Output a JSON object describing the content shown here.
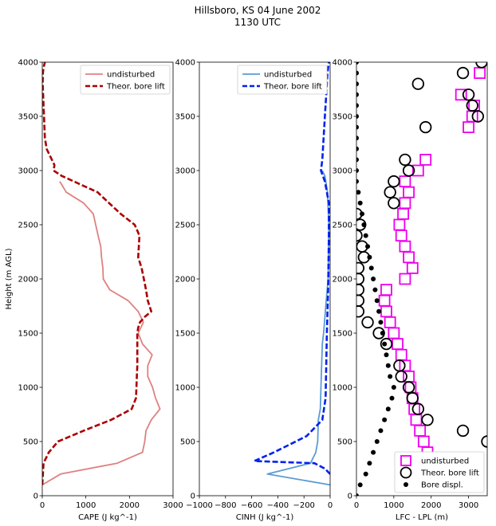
{
  "figure": {
    "title_line1": "Hillsboro, KS 04 June 2002",
    "title_line2": "1130 UTC"
  },
  "chart_data": [
    {
      "type": "line",
      "xlabel": "CAPE (J kg^-1)",
      "ylabel": "Height (m AGL)",
      "xlim": [
        0,
        3000
      ],
      "ylim": [
        0,
        4000
      ],
      "xticks": [
        "0",
        "1000",
        "2000",
        "3000"
      ],
      "yticks": [
        "0",
        "500",
        "1000",
        "1500",
        "2000",
        "2500",
        "3000",
        "3500",
        "4000"
      ],
      "legend_position": "top-right",
      "series": [
        {
          "name": "undisturbed",
          "color": "#e08080",
          "style": "solid",
          "x": [
            0,
            420,
            1720,
            2300,
            2350,
            2380,
            2500,
            2700,
            2600,
            2530,
            2420,
            2420,
            2520,
            2300,
            2200,
            2320,
            2200,
            1970,
            1550,
            1400,
            1390,
            1360,
            1340,
            1280,
            1170,
            950,
            550,
            400
          ],
          "y": [
            100,
            200,
            300,
            400,
            500,
            600,
            700,
            800,
            900,
            1000,
            1100,
            1200,
            1300,
            1400,
            1500,
            1600,
            1700,
            1800,
            1900,
            2000,
            2100,
            2200,
            2300,
            2400,
            2600,
            2700,
            2800,
            2900
          ]
        },
        {
          "name": "Theor. bore lift",
          "color": "#aa0000",
          "style": "dashed",
          "x": [
            0,
            30,
            150,
            360,
            950,
            1580,
            2050,
            2150,
            2160,
            2170,
            2180,
            2180,
            2180,
            2180,
            2200,
            2240,
            2350,
            2500,
            2420,
            2380,
            2330,
            2280,
            2200,
            2230,
            2120,
            1800,
            1400,
            1270,
            450,
            260,
            280,
            100,
            60,
            40,
            30,
            20,
            10,
            15,
            30,
            60
          ],
          "y": [
            100,
            300,
            400,
            500,
            600,
            700,
            800,
            900,
            1000,
            1100,
            1200,
            1300,
            1400,
            1500,
            1550,
            1600,
            1650,
            1700,
            1800,
            1900,
            2000,
            2100,
            2200,
            2400,
            2500,
            2600,
            2750,
            2800,
            2950,
            3000,
            3050,
            3200,
            3300,
            3500,
            3600,
            3700,
            3800,
            3900,
            3950,
            4000
          ]
        }
      ]
    },
    {
      "type": "line",
      "xlabel": "CINH (J kg^-1)",
      "ylabel": "",
      "xlim": [
        -1000,
        0
      ],
      "ylim": [
        0,
        4000
      ],
      "xticks": [
        "−1000",
        "−800",
        "−600",
        "−400",
        "−200",
        "0"
      ],
      "yticks": [
        "0",
        "500",
        "1000",
        "1500",
        "2000",
        "2500",
        "3000",
        "3500",
        "4000"
      ],
      "legend_position": "top-right",
      "series": [
        {
          "name": "undisturbed",
          "color": "#5b9bd5",
          "style": "solid",
          "x": [
            0,
            -480,
            -150,
            -110,
            -95,
            -90,
            -75,
            -70,
            -65,
            -60,
            -50,
            -30,
            -15,
            -10,
            -20,
            -40,
            -60
          ],
          "y": [
            100,
            200,
            300,
            400,
            500,
            700,
            800,
            1000,
            1200,
            1400,
            1500,
            1800,
            2000,
            2500,
            2800,
            2950,
            3000
          ]
        },
        {
          "name": "Theor. bore lift",
          "color": "#0022ee",
          "style": "dashed",
          "x": [
            0,
            -40,
            -120,
            -580,
            -430,
            -180,
            -60,
            -35,
            -30,
            -25,
            -15,
            -10,
            -10,
            -40,
            -70,
            -60,
            -50,
            -40,
            -30,
            -20,
            -10
          ],
          "y": [
            200,
            250,
            300,
            320,
            400,
            550,
            700,
            900,
            1200,
            1500,
            1900,
            2400,
            2700,
            2900,
            3000,
            3100,
            3300,
            3500,
            3700,
            3900,
            4000
          ]
        }
      ]
    },
    {
      "type": "scatter",
      "xlabel": "LFC - LPL (m)",
      "ylabel": "",
      "xlim": [
        0,
        3500
      ],
      "ylim": [
        0,
        4000
      ],
      "xticks": [
        "0",
        "1000",
        "2000",
        "3000"
      ],
      "yticks": [
        "0",
        "500",
        "1000",
        "1500",
        "2000",
        "2500",
        "3000",
        "3500",
        "4000"
      ],
      "legend_position": "bottom-right",
      "series": [
        {
          "name": "undisturbed",
          "color": "#ee00ee",
          "marker": "square",
          "x": [
            2000,
            1900,
            1800,
            1700,
            1600,
            1550,
            1500,
            1450,
            1400,
            1300,
            1200,
            1100,
            1000,
            900,
            800,
            750,
            800,
            1300,
            1500,
            1400,
            1300,
            1200,
            1150,
            1250,
            1300,
            1400,
            1300,
            1650,
            1850,
            3000,
            3100,
            3150,
            2800,
            3300
          ],
          "y": [
            300,
            400,
            500,
            600,
            700,
            800,
            900,
            1000,
            1100,
            1200,
            1300,
            1400,
            1500,
            1600,
            1700,
            1800,
            1900,
            2000,
            2100,
            2200,
            2300,
            2400,
            2500,
            2600,
            2700,
            2800,
            2900,
            3000,
            3100,
            3400,
            3500,
            3600,
            3700,
            3900
          ]
        },
        {
          "name": "Theor. bore lift",
          "color": "#000000",
          "marker": "circle",
          "x": [
            3500,
            2850,
            1900,
            1650,
            1500,
            1400,
            1200,
            1150,
            800,
            600,
            300,
            50,
            50,
            50,
            50,
            50,
            200,
            150,
            0,
            100,
            0,
            1000,
            900,
            1000,
            1400,
            1300,
            1850,
            3250,
            3100,
            3000,
            1650,
            2850,
            3350
          ],
          "y": [
            500,
            600,
            700,
            800,
            900,
            1000,
            1100,
            1200,
            1400,
            1500,
            1600,
            1700,
            1800,
            1900,
            2000,
            2100,
            2200,
            2300,
            2400,
            2500,
            2600,
            2700,
            2800,
            2900,
            3000,
            3100,
            3400,
            3500,
            3600,
            3700,
            3800,
            3900,
            4000
          ]
        },
        {
          "name": "Bore displ.",
          "color": "#000000",
          "marker": "dot",
          "x": [
            0,
            100,
            250,
            350,
            450,
            550,
            650,
            750,
            850,
            950,
            1000,
            900,
            850,
            800,
            750,
            700,
            650,
            600,
            550,
            500,
            450,
            400,
            350,
            300,
            250,
            200,
            150,
            100,
            50,
            0,
            0,
            0,
            0,
            0,
            0,
            0,
            0,
            0,
            0,
            0,
            0
          ],
          "y": [
            0,
            100,
            200,
            300,
            400,
            500,
            600,
            700,
            800,
            900,
            1000,
            1100,
            1200,
            1300,
            1400,
            1500,
            1600,
            1700,
            1800,
            1900,
            2000,
            2100,
            2200,
            2300,
            2400,
            2500,
            2600,
            2700,
            2800,
            2900,
            3000,
            3100,
            3200,
            3300,
            3400,
            3500,
            3600,
            3700,
            3800,
            3900,
            4000
          ]
        }
      ]
    }
  ]
}
